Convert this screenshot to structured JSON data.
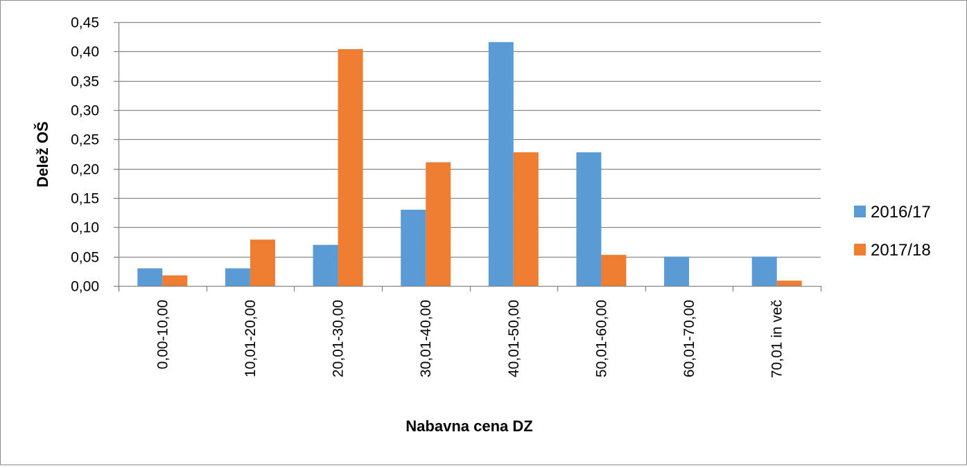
{
  "chart_data": {
    "type": "bar",
    "title": "",
    "xlabel": "Nabavna cena DZ",
    "ylabel": "Delež OŠ",
    "categories": [
      "0,00-10,00",
      "10,01-20,00",
      "20,01-30,00",
      "30,01-40,00",
      "40,01-50,00",
      "50,01-60,00",
      "60,01-70,00",
      "70,01 in več"
    ],
    "series": [
      {
        "name": "2016/17",
        "color": "#5B9BD5",
        "values": [
          0.03,
          0.03,
          0.07,
          0.13,
          0.416,
          0.228,
          0.05,
          0.05
        ]
      },
      {
        "name": "2017/18",
        "color": "#ED7D31",
        "values": [
          0.018,
          0.079,
          0.404,
          0.211,
          0.228,
          0.053,
          0.0,
          0.009
        ]
      }
    ],
    "ylim": [
      0,
      0.45
    ],
    "yticks": [
      0,
      0.05,
      0.1,
      0.15,
      0.2,
      0.25,
      0.3,
      0.35,
      0.4,
      0.45
    ],
    "ytick_labels": [
      "0,00",
      "0,05",
      "0,10",
      "0,15",
      "0,20",
      "0,25",
      "0,30",
      "0,35",
      "0,40",
      "0,45"
    ],
    "grid": true,
    "legend_position": "right"
  }
}
